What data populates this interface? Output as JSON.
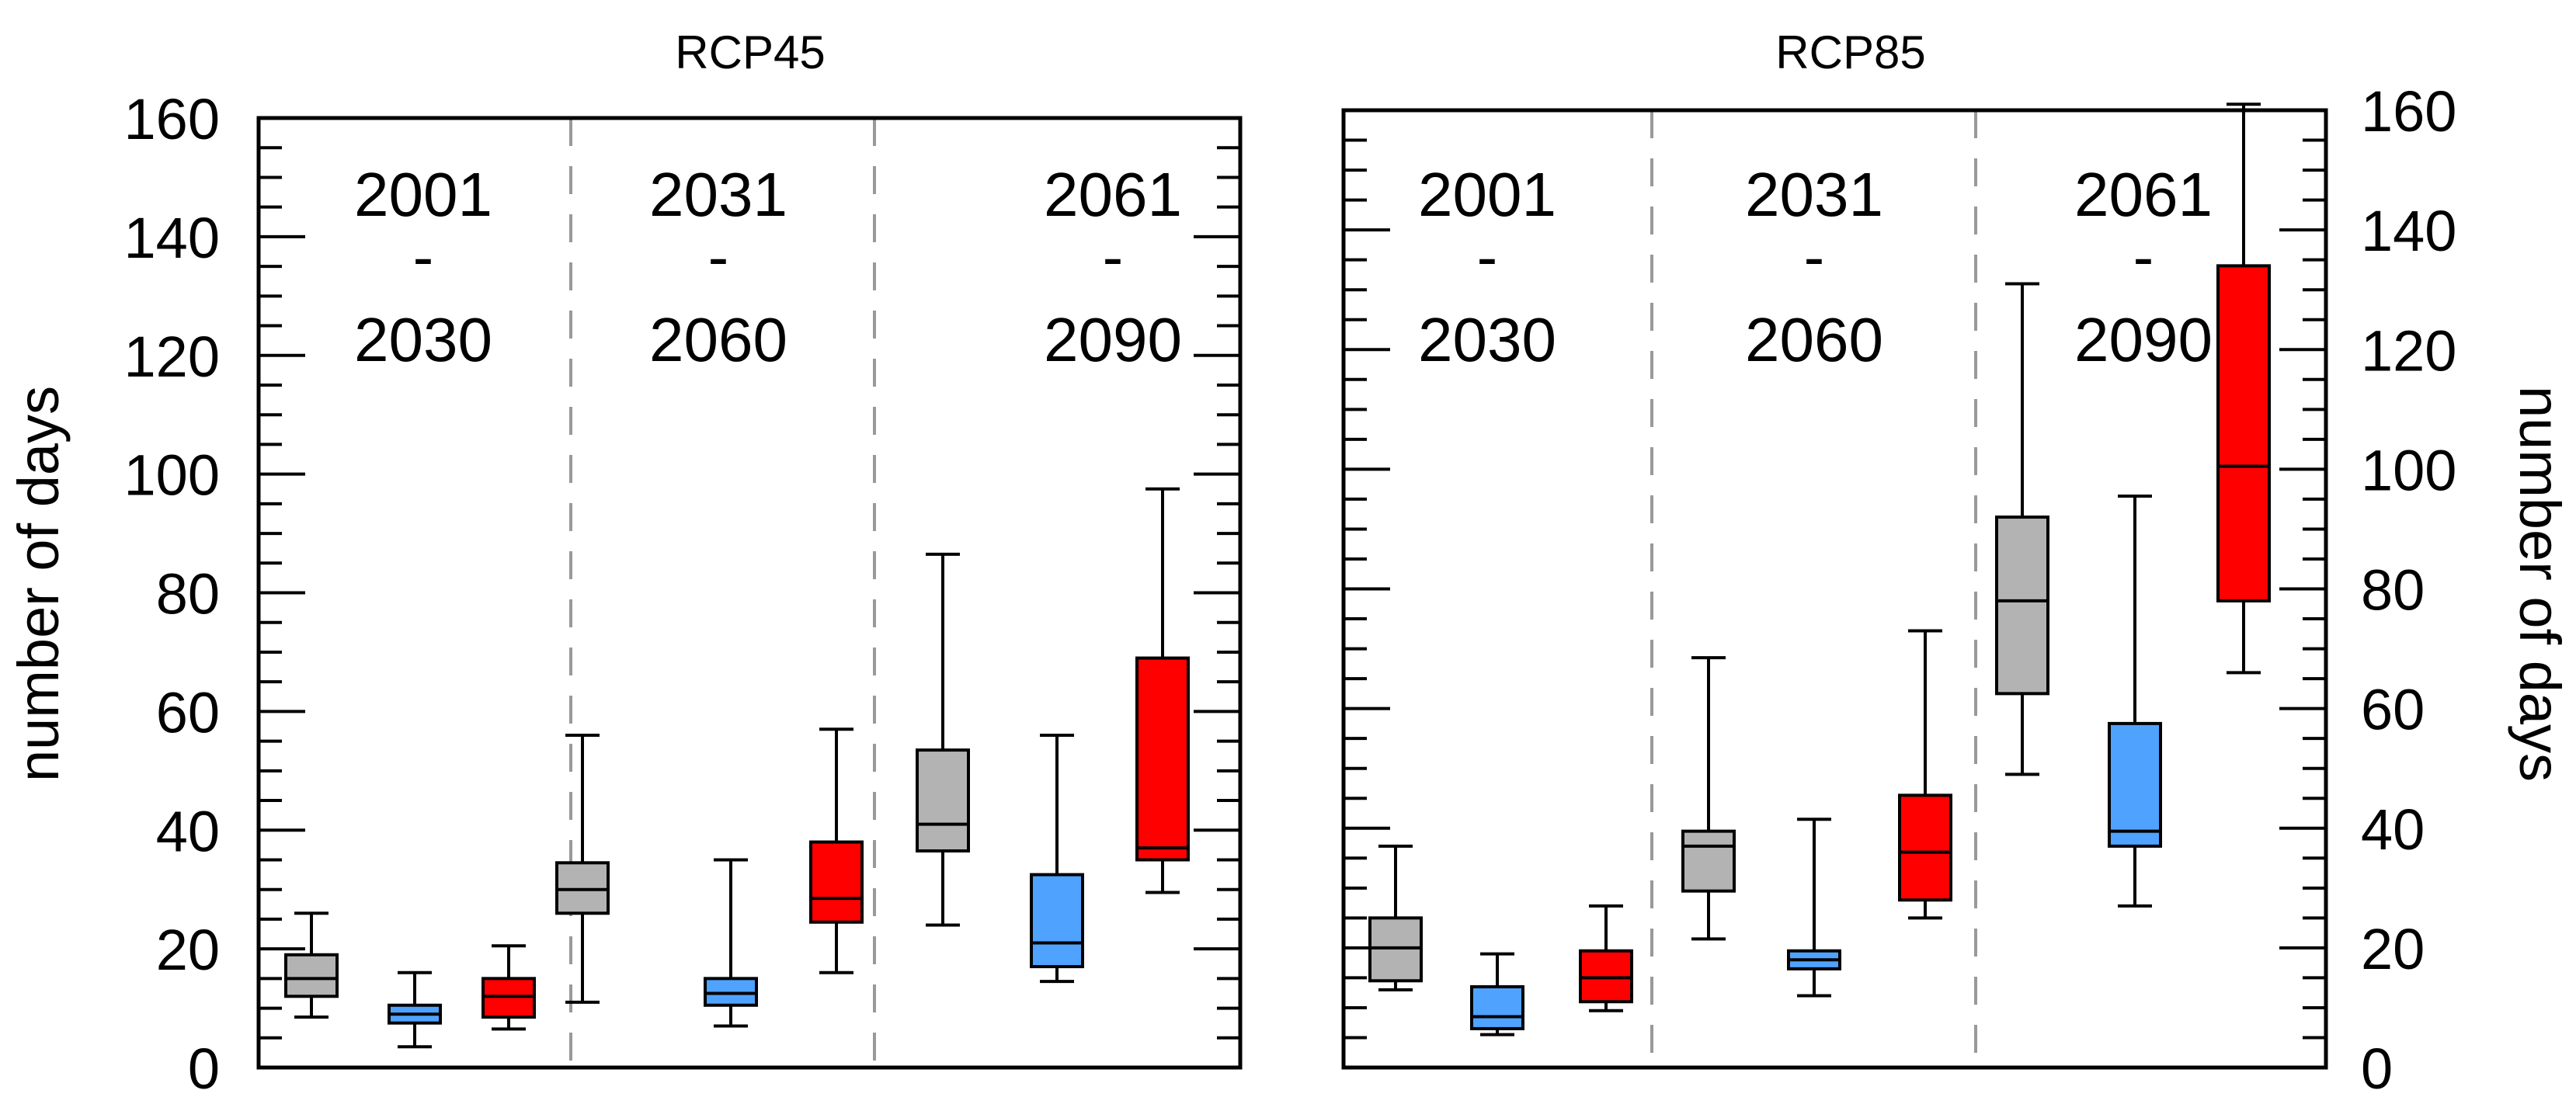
{
  "chart_data": {
    "type": "box",
    "ylabel": "number of days",
    "ylim": [
      0,
      160
    ],
    "yticks": [
      "0",
      "20",
      "40",
      "60",
      "80",
      "100",
      "120",
      "140",
      "160"
    ],
    "colors": {
      "gray": "#b3b3b3",
      "blue": "#4fa3ff",
      "red": "#ff0000"
    },
    "panels": [
      {
        "title": "RCP45",
        "periods": [
          {
            "top": "2001",
            "mid": "-",
            "bottom": "2030",
            "boxes": [
              {
                "color": "gray",
                "min": 8.5,
                "q1": 12,
                "median": 15,
                "q3": 19,
                "max": 26
              },
              {
                "color": "blue",
                "min": 3.5,
                "q1": 7.5,
                "median": 9,
                "q3": 10.5,
                "max": 16
              },
              {
                "color": "red",
                "min": 6.5,
                "q1": 8.5,
                "median": 12,
                "q3": 15,
                "max": 20.5
              }
            ]
          },
          {
            "top": "2031",
            "mid": "-",
            "bottom": "2060",
            "boxes": [
              {
                "color": "gray",
                "min": 11,
                "q1": 26,
                "median": 30,
                "q3": 34.5,
                "max": 56
              },
              {
                "color": "blue",
                "min": 7,
                "q1": 10.5,
                "median": 12.5,
                "q3": 15,
                "max": 35
              },
              {
                "color": "red",
                "min": 16,
                "q1": 24.5,
                "median": 28.5,
                "q3": 38,
                "max": 57
              }
            ]
          },
          {
            "top": "2061",
            "mid": "-",
            "bottom": "2090",
            "boxes": [
              {
                "color": "gray",
                "min": 24,
                "q1": 36.5,
                "median": 41,
                "q3": 53.5,
                "max": 86.5
              },
              {
                "color": "blue",
                "min": 14.5,
                "q1": 17,
                "median": 21,
                "q3": 32.5,
                "max": 56
              },
              {
                "color": "red",
                "min": 29.5,
                "q1": 35,
                "median": 37,
                "q3": 69,
                "max": 97.5
              }
            ]
          }
        ]
      },
      {
        "title": "RCP85",
        "periods": [
          {
            "top": "2001",
            "mid": "-",
            "bottom": "2030",
            "boxes": [
              {
                "color": "gray",
                "min": 13,
                "q1": 14.5,
                "median": 20,
                "q3": 25,
                "max": 37
              },
              {
                "color": "blue",
                "min": 5.5,
                "q1": 6.5,
                "median": 8.5,
                "q3": 13.5,
                "max": 19
              },
              {
                "color": "red",
                "min": 9.5,
                "q1": 11,
                "median": 15,
                "q3": 19.5,
                "max": 27
              }
            ]
          },
          {
            "top": "2031",
            "mid": "-",
            "bottom": "2060",
            "boxes": [
              {
                "color": "gray",
                "min": 21.5,
                "q1": 29.5,
                "median": 37,
                "q3": 39.5,
                "max": 68.5
              },
              {
                "color": "blue",
                "min": 12,
                "q1": 16.5,
                "median": 18,
                "q3": 19.5,
                "max": 41.5
              },
              {
                "color": "red",
                "min": 25,
                "q1": 28,
                "median": 36,
                "q3": 45.5,
                "max": 73
              }
            ]
          },
          {
            "top": "2061",
            "mid": "-",
            "bottom": "2090",
            "boxes": [
              {
                "color": "gray",
                "min": 49,
                "q1": 62.5,
                "median": 78,
                "q3": 92,
                "max": 131
              },
              {
                "color": "blue",
                "min": 27,
                "q1": 37,
                "median": 39.5,
                "q3": 57.5,
                "max": 95.5
              },
              {
                "color": "red",
                "min": 66,
                "q1": 78,
                "median": 100.5,
                "q3": 134,
                "max": 161
              }
            ]
          }
        ]
      }
    ]
  }
}
